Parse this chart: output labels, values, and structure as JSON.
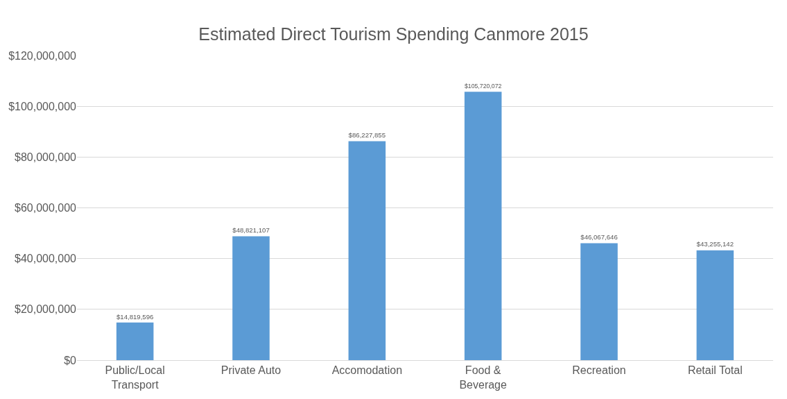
{
  "chart_data": {
    "type": "bar",
    "title": "Estimated Direct Tourism Spending Canmore 2015",
    "categories": [
      "Public/Local\nTransport",
      "Private Auto",
      "Accomodation",
      "Food &\nBeverage",
      "Recreation",
      "Retail Total"
    ],
    "values": [
      14819596,
      48821107,
      86227855,
      105720072,
      46067646,
      43255142
    ],
    "value_labels": [
      "$14,819,596",
      "$48,821,107",
      "$86,227,855",
      "$105,720,072",
      "$46,067,646",
      "$43,255,142"
    ],
    "color": "#5b9bd5",
    "ylim": [
      0,
      120000000
    ],
    "yticks": [
      {
        "value": 0,
        "label": "$0"
      },
      {
        "value": 20000000,
        "label": "$20,000,000"
      },
      {
        "value": 40000000,
        "label": "$40,000,000"
      },
      {
        "value": 60000000,
        "label": "$60,000,000"
      },
      {
        "value": 80000000,
        "label": "$80,000,000"
      },
      {
        "value": 100000000,
        "label": "$100,000,000"
      },
      {
        "value": 120000000,
        "label": "$120,000,000"
      }
    ],
    "grid": "y",
    "legend": false
  }
}
